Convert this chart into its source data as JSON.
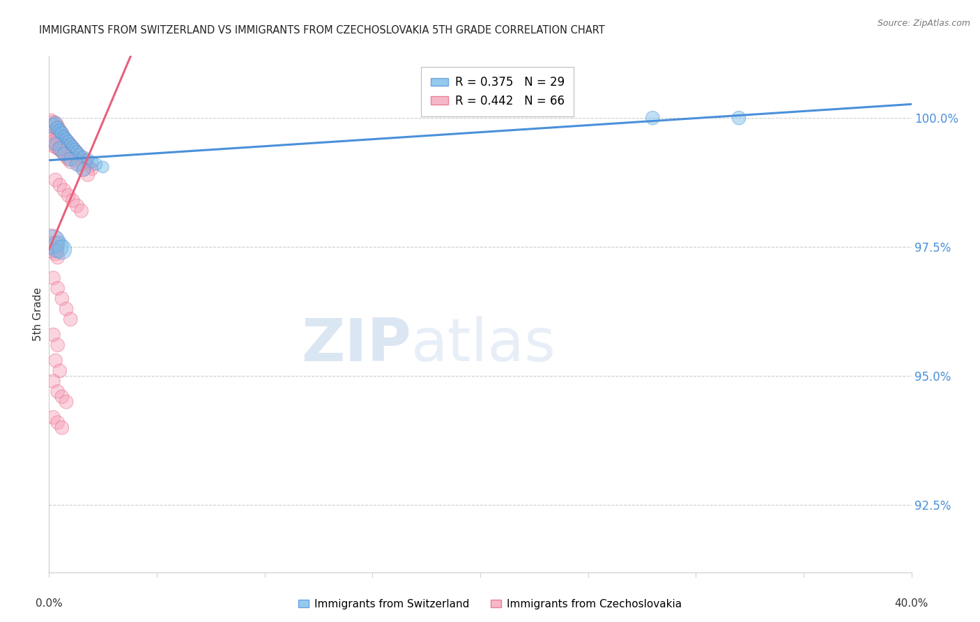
{
  "title": "IMMIGRANTS FROM SWITZERLAND VS IMMIGRANTS FROM CZECHOSLOVAKIA 5TH GRADE CORRELATION CHART",
  "source": "Source: ZipAtlas.com",
  "ylabel": "5th Grade",
  "yticks": [
    92.5,
    95.0,
    97.5,
    100.0
  ],
  "ytick_labels": [
    "92.5%",
    "95.0%",
    "97.5%",
    "100.0%"
  ],
  "xlim": [
    0.0,
    0.4
  ],
  "ylim": [
    91.2,
    101.2
  ],
  "legend_blue_r": "R = 0.375",
  "legend_blue_n": "N = 29",
  "legend_pink_r": "R = 0.442",
  "legend_pink_n": "N = 66",
  "label_blue": "Immigrants from Switzerland",
  "label_pink": "Immigrants from Czechoslovakia",
  "color_blue": "#72b8e8",
  "color_pink": "#f4a0b8",
  "color_blue_line": "#4a90d9",
  "color_pink_line": "#e8607a",
  "watermark_zip": "ZIP",
  "watermark_atlas": "atlas",
  "blue_scatter_x": [
    0.002,
    0.003,
    0.004,
    0.005,
    0.006,
    0.007,
    0.008,
    0.009,
    0.01,
    0.011,
    0.012,
    0.013,
    0.014,
    0.016,
    0.018,
    0.02,
    0.022,
    0.025,
    0.003,
    0.005,
    0.007,
    0.01,
    0.013,
    0.016,
    0.002,
    0.004,
    0.006,
    0.28,
    0.32
  ],
  "blue_scatter_y": [
    99.85,
    99.9,
    99.8,
    99.75,
    99.7,
    99.65,
    99.6,
    99.55,
    99.5,
    99.45,
    99.4,
    99.35,
    99.3,
    99.25,
    99.2,
    99.15,
    99.1,
    99.05,
    99.5,
    99.4,
    99.3,
    99.2,
    99.1,
    99.0,
    97.6,
    97.5,
    97.45,
    100.0,
    100.0
  ],
  "blue_scatter_sizes": [
    25,
    20,
    20,
    20,
    20,
    15,
    15,
    15,
    15,
    15,
    15,
    15,
    15,
    15,
    15,
    15,
    15,
    15,
    20,
    20,
    20,
    20,
    20,
    20,
    60,
    50,
    40,
    20,
    20
  ],
  "pink_scatter_x": [
    0.001,
    0.002,
    0.003,
    0.004,
    0.005,
    0.006,
    0.007,
    0.008,
    0.009,
    0.01,
    0.011,
    0.012,
    0.013,
    0.014,
    0.015,
    0.016,
    0.017,
    0.018,
    0.019,
    0.02,
    0.002,
    0.004,
    0.006,
    0.008,
    0.01,
    0.012,
    0.014,
    0.016,
    0.018,
    0.001,
    0.002,
    0.003,
    0.004,
    0.005,
    0.006,
    0.007,
    0.008,
    0.009,
    0.01,
    0.003,
    0.005,
    0.007,
    0.009,
    0.011,
    0.013,
    0.015,
    0.001,
    0.002,
    0.003,
    0.004,
    0.002,
    0.004,
    0.006,
    0.008,
    0.01,
    0.002,
    0.004,
    0.003,
    0.005,
    0.002,
    0.004,
    0.006,
    0.008,
    0.002,
    0.004,
    0.006
  ],
  "pink_scatter_y": [
    99.95,
    99.9,
    99.85,
    99.8,
    99.75,
    99.7,
    99.65,
    99.6,
    99.55,
    99.5,
    99.45,
    99.4,
    99.35,
    99.3,
    99.25,
    99.2,
    99.15,
    99.1,
    99.05,
    99.0,
    99.7,
    99.6,
    99.5,
    99.4,
    99.3,
    99.2,
    99.1,
    99.0,
    98.9,
    99.6,
    99.55,
    99.5,
    99.45,
    99.4,
    99.35,
    99.3,
    99.25,
    99.2,
    99.15,
    98.8,
    98.7,
    98.6,
    98.5,
    98.4,
    98.3,
    98.2,
    97.6,
    97.5,
    97.4,
    97.3,
    96.9,
    96.7,
    96.5,
    96.3,
    96.1,
    95.8,
    95.6,
    95.3,
    95.1,
    94.9,
    94.7,
    94.6,
    94.5,
    94.2,
    94.1,
    94.0
  ],
  "pink_scatter_sizes": [
    20,
    25,
    30,
    25,
    20,
    20,
    15,
    15,
    15,
    15,
    15,
    15,
    15,
    15,
    15,
    15,
    15,
    15,
    15,
    15,
    25,
    20,
    20,
    20,
    20,
    20,
    20,
    20,
    20,
    30,
    35,
    40,
    30,
    25,
    20,
    20,
    20,
    20,
    20,
    20,
    20,
    20,
    20,
    20,
    20,
    20,
    70,
    50,
    30,
    20,
    20,
    20,
    20,
    20,
    20,
    20,
    20,
    20,
    20,
    20,
    20,
    20,
    20,
    20,
    20,
    20
  ],
  "blue_line_x": [
    0.0,
    0.4
  ],
  "blue_line_y": [
    99.35,
    99.85
  ],
  "pink_line_x": [
    0.0,
    0.032
  ],
  "pink_line_y": [
    98.8,
    99.95
  ]
}
